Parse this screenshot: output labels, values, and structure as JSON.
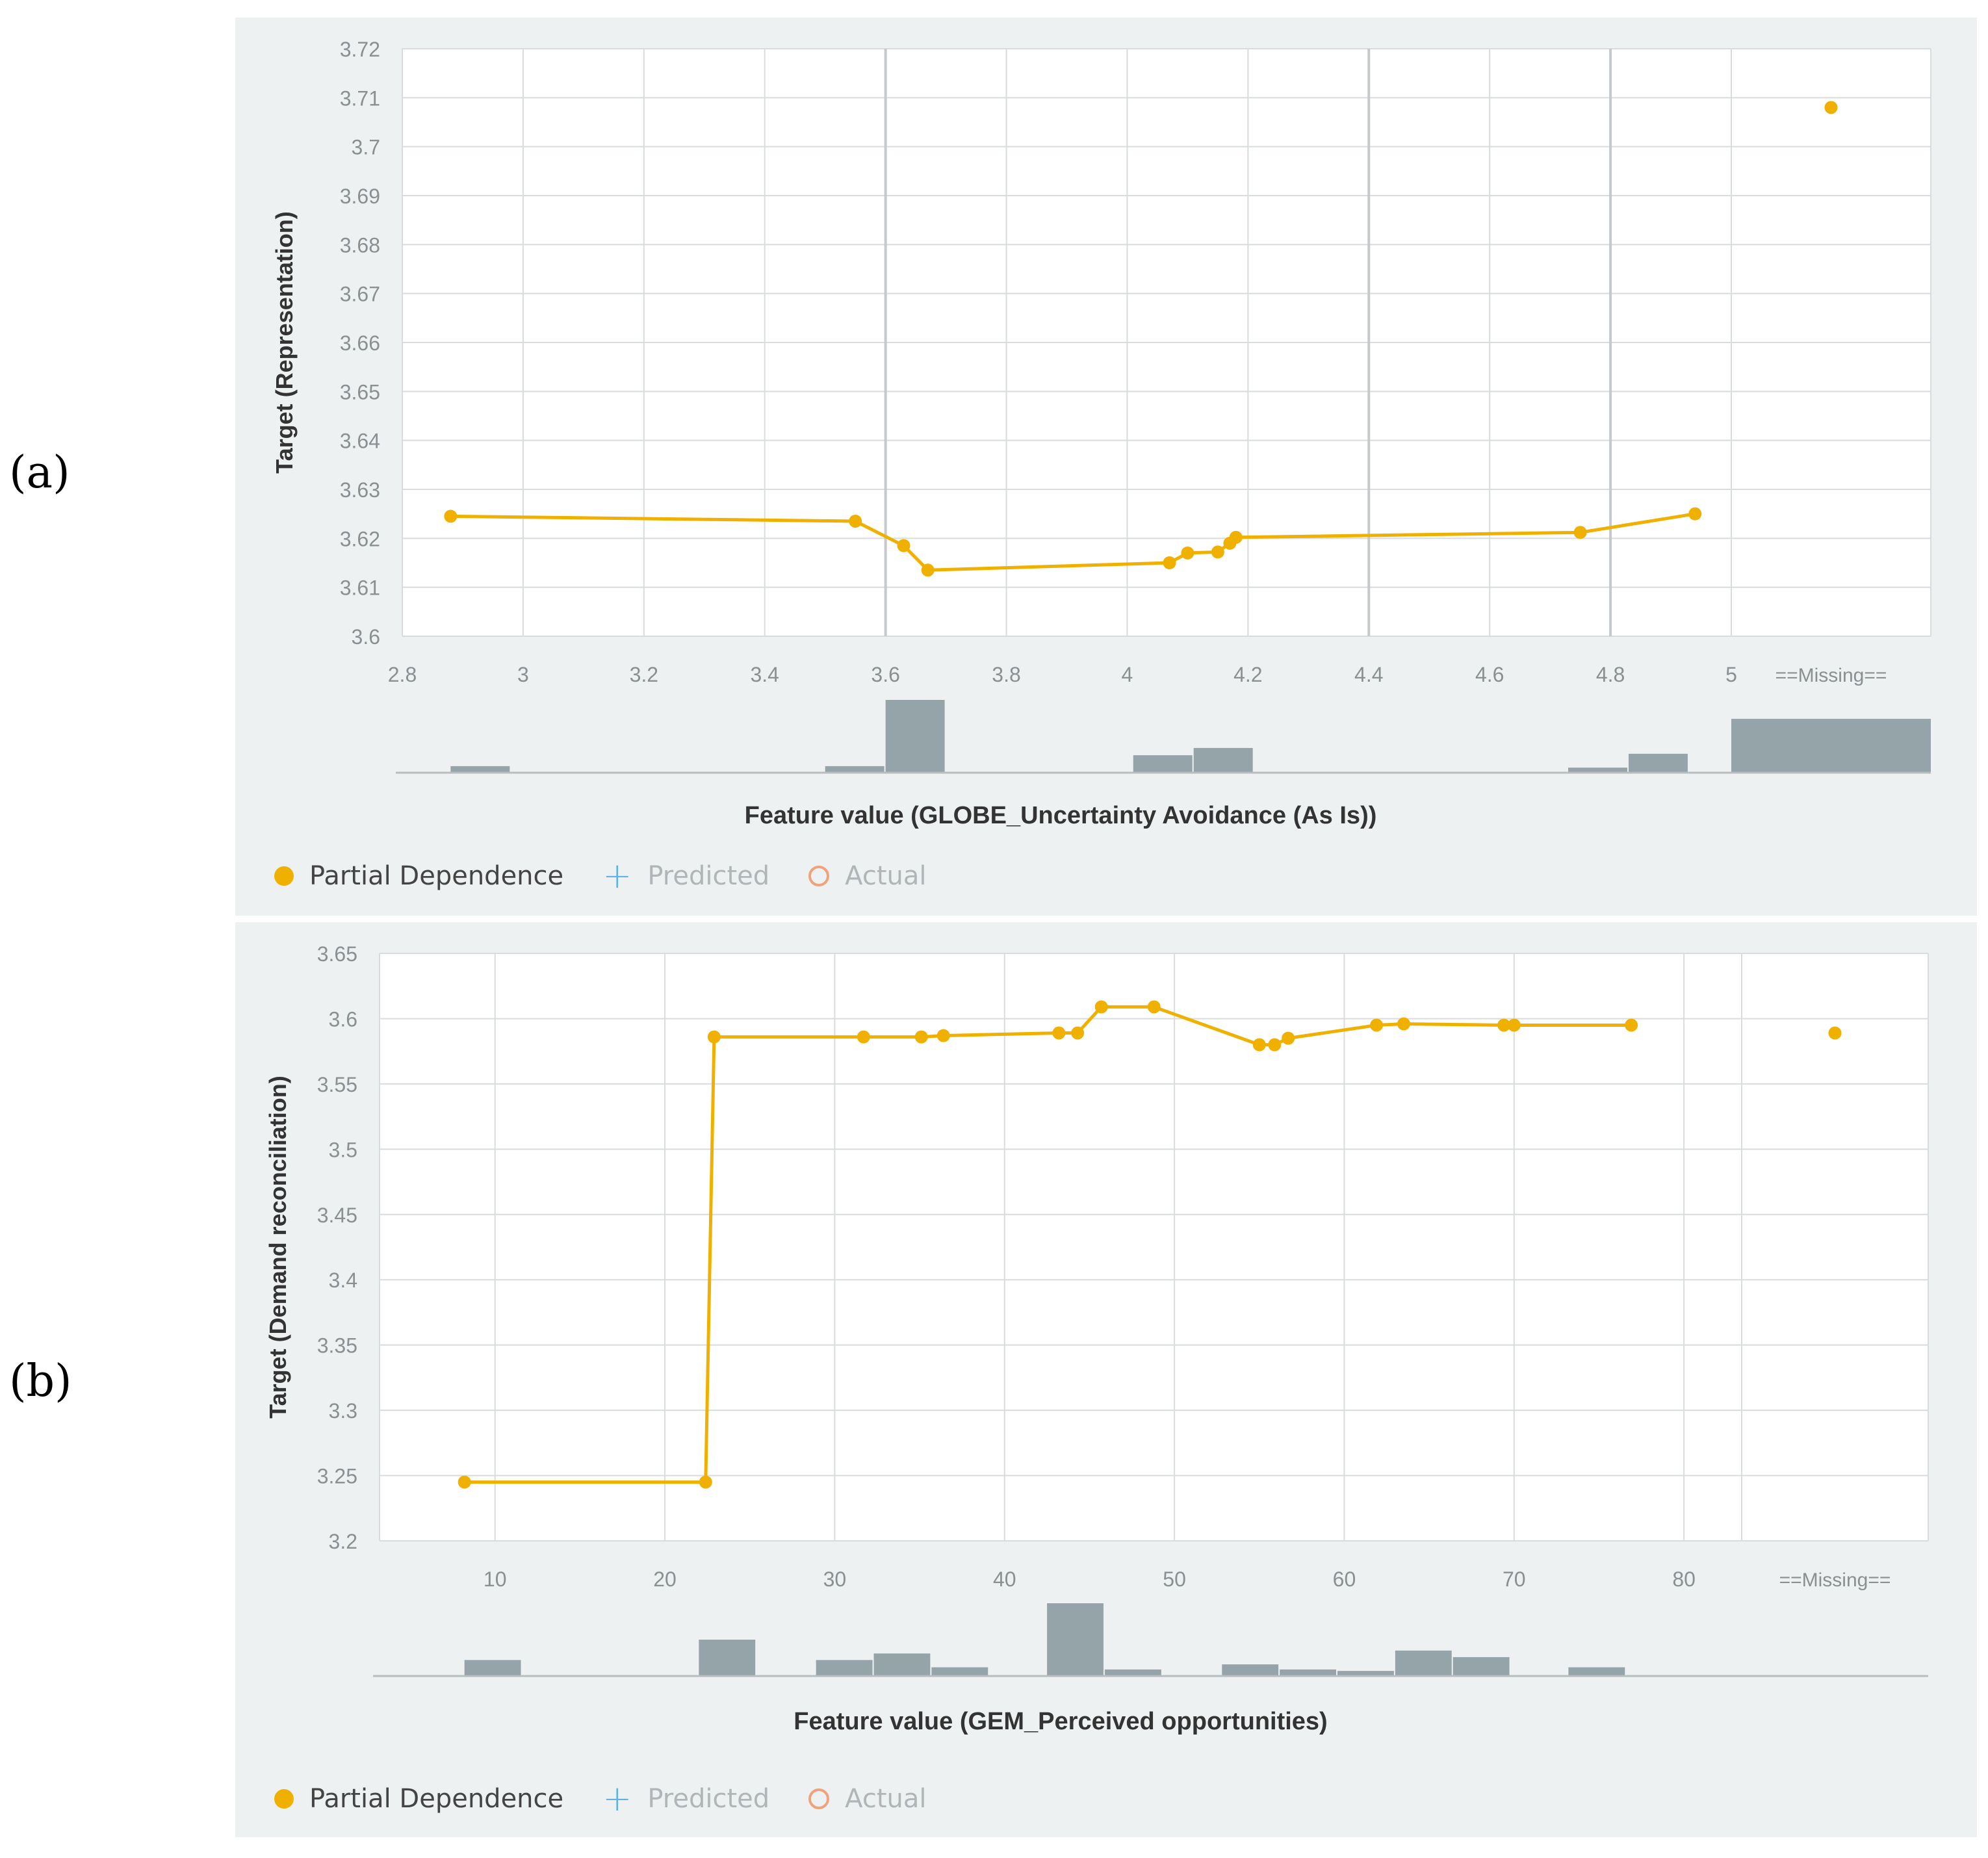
{
  "panels": [
    {
      "letter": "(a)"
    },
    {
      "letter": "(b)"
    }
  ],
  "colors": {
    "line": "#f0b000",
    "bar": "#95a4a8",
    "grid": "#d8dcdd",
    "grid_major": "#c5c9cb",
    "axis_text": "#8a8f92",
    "predicted": "#5fb3e6",
    "actual": "#f0a27a"
  },
  "legend": {
    "partial": "Partial Dependence",
    "predicted": "Predicted",
    "actual": "Actual",
    "partial_icon": "filled-circle",
    "predicted_icon": "plus",
    "actual_icon": "ring"
  },
  "chart_data": [
    {
      "type": "line",
      "title": "",
      "xlabel": "Feature value (GLOBE_Uncertainty Avoidance (As Is))",
      "ylabel": "Target (Representation)",
      "xlim": [
        2.8,
        5.0
      ],
      "ylim": [
        3.6,
        3.72
      ],
      "grid": true,
      "xticks": [
        2.8,
        3,
        3.2,
        3.4,
        3.6,
        3.8,
        4,
        4.2,
        4.4,
        4.6,
        4.8,
        5
      ],
      "xtick_labels": [
        "2.8",
        "3",
        "3.2",
        "3.4",
        "3.6",
        "3.8",
        "4",
        "4.2",
        "4.4",
        "4.6",
        "4.8",
        "5"
      ],
      "yticks": [
        3.6,
        3.61,
        3.62,
        3.63,
        3.64,
        3.65,
        3.66,
        3.67,
        3.68,
        3.69,
        3.7,
        3.71,
        3.72
      ],
      "ytick_labels": [
        "3.6",
        "3.61",
        "3.62",
        "3.63",
        "3.64",
        "3.65",
        "3.66",
        "3.67",
        "3.68",
        "3.69",
        "3.7",
        "3.71",
        "3.72"
      ],
      "missing_label": "==Missing==",
      "missing_value": 3.708,
      "series": [
        {
          "x": [
            2.88,
            3.55,
            3.63,
            3.67,
            4.07,
            4.1,
            4.15,
            4.17,
            4.18,
            4.75,
            4.94
          ],
          "y": [
            3.6245,
            3.6235,
            3.6185,
            3.6135,
            3.615,
            3.617,
            3.6172,
            3.619,
            3.6202,
            3.6212,
            3.625
          ]
        }
      ],
      "histogram": {
        "bins": [
          {
            "x0": 2.88,
            "x1": 2.98,
            "h": 0.09
          },
          {
            "x0": 3.5,
            "x1": 3.6,
            "h": 0.09
          },
          {
            "x0": 3.6,
            "x1": 3.7,
            "h": 1.0
          },
          {
            "x0": 4.01,
            "x1": 4.11,
            "h": 0.24
          },
          {
            "x0": 4.11,
            "x1": 4.21,
            "h": 0.34
          },
          {
            "x0": 4.73,
            "x1": 4.83,
            "h": 0.07
          },
          {
            "x0": 4.83,
            "x1": 4.93,
            "h": 0.26
          }
        ],
        "missing_h": 0.74
      }
    },
    {
      "type": "line",
      "title": "",
      "xlabel": "Feature value (GEM_Perceived opportunities)",
      "ylabel": "Target (Demand reconciliation)",
      "xlim": [
        3.2,
        83.4
      ],
      "ylim": [
        3.2,
        3.65
      ],
      "grid": true,
      "xticks": [
        10,
        20,
        30,
        40,
        50,
        60,
        70,
        80
      ],
      "xtick_labels": [
        "10",
        "20",
        "30",
        "40",
        "50",
        "60",
        "70",
        "80"
      ],
      "yticks": [
        3.2,
        3.25,
        3.3,
        3.35,
        3.4,
        3.45,
        3.5,
        3.55,
        3.6,
        3.65
      ],
      "ytick_labels": [
        "3.2",
        "3.25",
        "3.3",
        "3.35",
        "3.4",
        "3.45",
        "3.5",
        "3.55",
        "3.6",
        "3.65"
      ],
      "missing_label": "==Missing==",
      "missing_value": 3.589,
      "series": [
        {
          "x": [
            8.2,
            22.4,
            22.9,
            31.7,
            35.1,
            36.4,
            43.2,
            44.3,
            45.7,
            48.8,
            55,
            55.9,
            56.7,
            61.9,
            63.5,
            69.4,
            70,
            76.9
          ],
          "y": [
            3.245,
            3.245,
            3.586,
            3.586,
            3.586,
            3.587,
            3.589,
            3.589,
            3.609,
            3.609,
            3.58,
            3.58,
            3.585,
            3.595,
            3.596,
            3.595,
            3.595,
            3.595
          ]
        }
      ],
      "histogram": {
        "bins": [
          {
            "x0": 8.2,
            "x1": 11.6,
            "h": 0.22
          },
          {
            "x0": 22.0,
            "x1": 25.4,
            "h": 0.5
          },
          {
            "x0": 28.9,
            "x1": 32.3,
            "h": 0.22
          },
          {
            "x0": 32.3,
            "x1": 35.7,
            "h": 0.31
          },
          {
            "x0": 35.7,
            "x1": 39.1,
            "h": 0.12
          },
          {
            "x0": 42.5,
            "x1": 45.9,
            "h": 1.0
          },
          {
            "x0": 45.9,
            "x1": 49.3,
            "h": 0.09
          },
          {
            "x0": 52.8,
            "x1": 56.2,
            "h": 0.16
          },
          {
            "x0": 56.2,
            "x1": 59.6,
            "h": 0.09
          },
          {
            "x0": 59.6,
            "x1": 63.0,
            "h": 0.07
          },
          {
            "x0": 63.0,
            "x1": 66.4,
            "h": 0.35
          },
          {
            "x0": 66.4,
            "x1": 69.8,
            "h": 0.26
          },
          {
            "x0": 73.2,
            "x1": 76.6,
            "h": 0.12
          }
        ],
        "missing_h": 0
      }
    }
  ]
}
